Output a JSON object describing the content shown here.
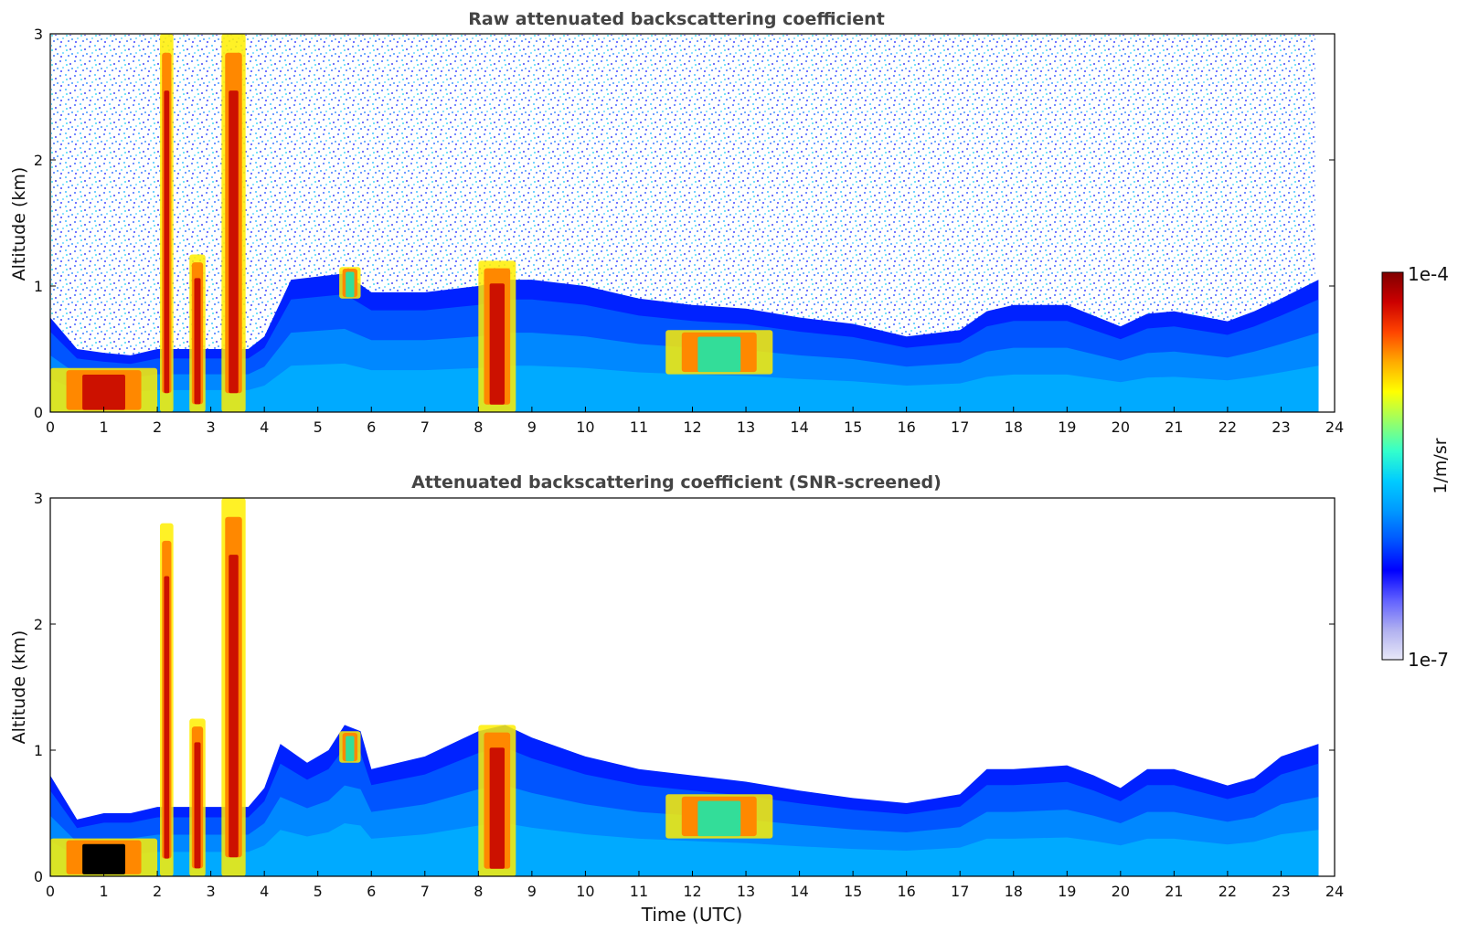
{
  "figure": {
    "colorbar": {
      "label": "1/m/sr",
      "max_label": "1e-4",
      "min_label": "1e-7",
      "scale": "log",
      "colors": [
        "#e8e8f8",
        "#b0b0f0",
        "#6060ff",
        "#0000ff",
        "#0055ff",
        "#0099ff",
        "#00ccff",
        "#33ffcc",
        "#99ff66",
        "#ffff00",
        "#ffaa00",
        "#ff4400",
        "#cc0000",
        "#800000"
      ]
    }
  },
  "chart_data": [
    {
      "type": "heatmap",
      "title": "Raw attenuated backscattering coefficient",
      "xlabel": "",
      "ylabel": "Altitude (km)",
      "xlim": [
        0,
        24
      ],
      "ylim": [
        0,
        3
      ],
      "x_ticks": [
        0,
        1,
        2,
        3,
        4,
        5,
        6,
        7,
        8,
        9,
        10,
        11,
        12,
        13,
        14,
        15,
        16,
        17,
        18,
        19,
        20,
        21,
        22,
        23,
        24
      ],
      "y_ticks": [
        0,
        1,
        2,
        3
      ],
      "boundary_layer_top_km": [
        [
          0,
          0.75
        ],
        [
          0.5,
          0.5
        ],
        [
          1,
          0.47
        ],
        [
          1.5,
          0.45
        ],
        [
          2,
          0.5
        ],
        [
          3.7,
          0.5
        ],
        [
          4,
          0.6
        ],
        [
          4.5,
          1.05
        ],
        [
          5.5,
          1.1
        ],
        [
          6,
          0.95
        ],
        [
          7,
          0.95
        ],
        [
          8,
          1.0
        ],
        [
          8.5,
          1.05
        ],
        [
          9,
          1.05
        ],
        [
          10,
          1.0
        ],
        [
          11,
          0.9
        ],
        [
          12,
          0.85
        ],
        [
          13,
          0.82
        ],
        [
          14,
          0.75
        ],
        [
          15,
          0.7
        ],
        [
          16,
          0.6
        ],
        [
          17,
          0.65
        ],
        [
          17.5,
          0.8
        ],
        [
          18,
          0.85
        ],
        [
          19,
          0.85
        ],
        [
          20,
          0.68
        ],
        [
          20.5,
          0.78
        ],
        [
          21,
          0.8
        ],
        [
          22,
          0.72
        ],
        [
          22.5,
          0.8
        ],
        [
          23,
          0.9
        ],
        [
          23.7,
          1.05
        ]
      ],
      "strong_features": [
        {
          "x": [
            0,
            2
          ],
          "y": [
            0,
            0.35
          ],
          "level": "high"
        },
        {
          "x": [
            2.05,
            2.3
          ],
          "y": [
            0,
            3
          ],
          "level": "high"
        },
        {
          "x": [
            2.6,
            2.9
          ],
          "y": [
            0,
            1.25
          ],
          "level": "high"
        },
        {
          "x": [
            3.2,
            3.65
          ],
          "y": [
            0,
            3
          ],
          "level": "high"
        },
        {
          "x": [
            8.0,
            8.7
          ],
          "y": [
            0,
            1.2
          ],
          "level": "high"
        },
        {
          "x": [
            5.4,
            5.8
          ],
          "y": [
            0.9,
            1.15
          ],
          "level": "medium"
        },
        {
          "x": [
            11.5,
            13.5
          ],
          "y": [
            0.3,
            0.65
          ],
          "level": "medium"
        }
      ]
    },
    {
      "type": "heatmap",
      "title": "Attenuated backscattering coefficient (SNR-screened)",
      "xlabel": "Time (UTC)",
      "ylabel": "Altitude (km)",
      "xlim": [
        0,
        24
      ],
      "ylim": [
        0,
        3
      ],
      "x_ticks": [
        0,
        1,
        2,
        3,
        4,
        5,
        6,
        7,
        8,
        9,
        10,
        11,
        12,
        13,
        14,
        15,
        16,
        17,
        18,
        19,
        20,
        21,
        22,
        23,
        24
      ],
      "y_ticks": [
        0,
        1,
        2,
        3
      ],
      "boundary_layer_top_km": [
        [
          0,
          0.8
        ],
        [
          0.5,
          0.45
        ],
        [
          1,
          0.5
        ],
        [
          1.5,
          0.5
        ],
        [
          2,
          0.55
        ],
        [
          3.7,
          0.55
        ],
        [
          4,
          0.7
        ],
        [
          4.3,
          1.05
        ],
        [
          4.8,
          0.9
        ],
        [
          5.2,
          1.0
        ],
        [
          5.5,
          1.2
        ],
        [
          5.8,
          1.15
        ],
        [
          6,
          0.85
        ],
        [
          7,
          0.95
        ],
        [
          8,
          1.15
        ],
        [
          8.5,
          1.2
        ],
        [
          9,
          1.1
        ],
        [
          10,
          0.95
        ],
        [
          11,
          0.85
        ],
        [
          12,
          0.8
        ],
        [
          13,
          0.75
        ],
        [
          14,
          0.68
        ],
        [
          15,
          0.62
        ],
        [
          16,
          0.58
        ],
        [
          17,
          0.65
        ],
        [
          17.5,
          0.85
        ],
        [
          18,
          0.85
        ],
        [
          19,
          0.88
        ],
        [
          19.5,
          0.8
        ],
        [
          20,
          0.7
        ],
        [
          20.5,
          0.85
        ],
        [
          21,
          0.85
        ],
        [
          22,
          0.72
        ],
        [
          22.5,
          0.78
        ],
        [
          23,
          0.95
        ],
        [
          23.7,
          1.05
        ]
      ],
      "strong_features": [
        {
          "x": [
            0,
            2
          ],
          "y": [
            0,
            0.3
          ],
          "level": "saturated"
        },
        {
          "x": [
            2.05,
            2.3
          ],
          "y": [
            0,
            2.8
          ],
          "level": "high"
        },
        {
          "x": [
            2.6,
            2.9
          ],
          "y": [
            0,
            1.25
          ],
          "level": "high"
        },
        {
          "x": [
            3.2,
            3.65
          ],
          "y": [
            0,
            3
          ],
          "level": "high"
        },
        {
          "x": [
            8.0,
            8.7
          ],
          "y": [
            0,
            1.2
          ],
          "level": "high"
        },
        {
          "x": [
            5.4,
            5.8
          ],
          "y": [
            0.9,
            1.15
          ],
          "level": "medium"
        },
        {
          "x": [
            11.5,
            13.5
          ],
          "y": [
            0.3,
            0.65
          ],
          "level": "medium"
        }
      ]
    }
  ]
}
